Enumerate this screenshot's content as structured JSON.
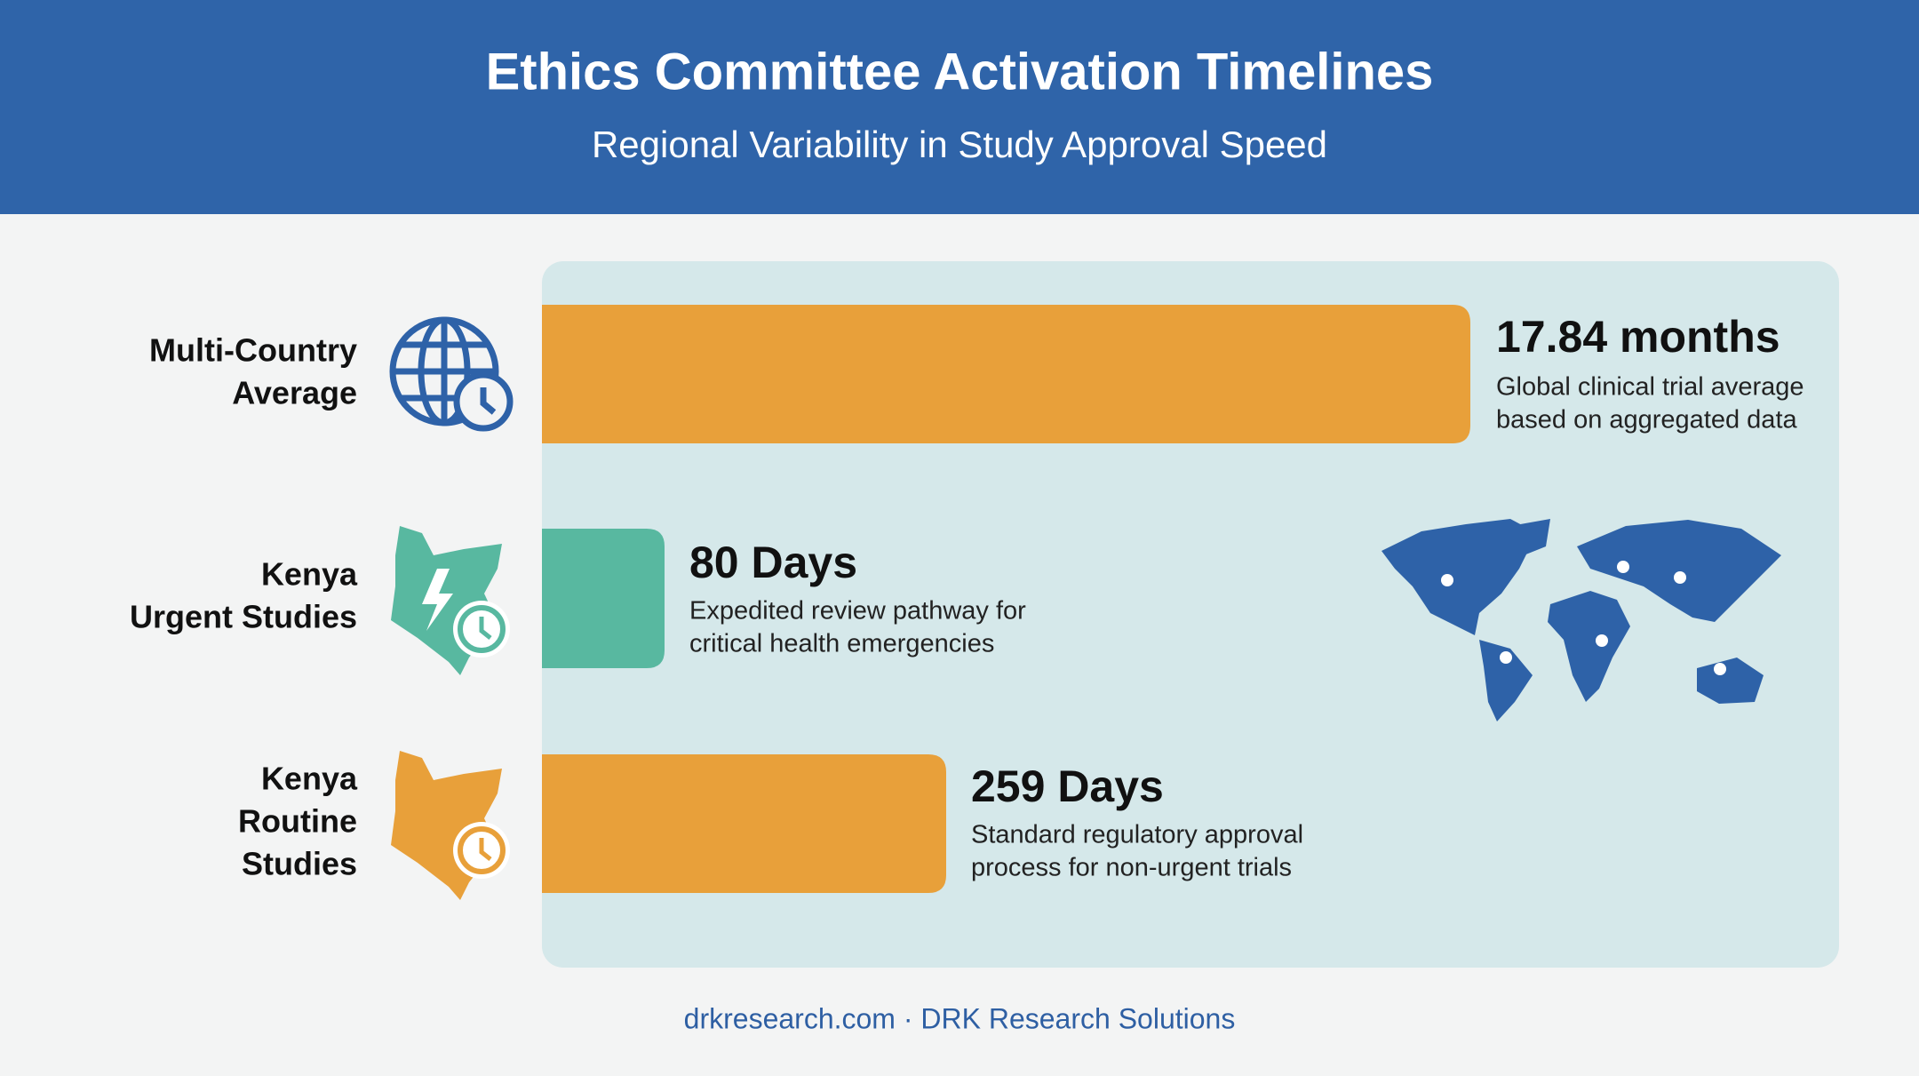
{
  "header": {
    "title": "Ethics Committee Activation Timelines",
    "subtitle": "Regional Variability in Study Approval Speed"
  },
  "rows": [
    {
      "label": [
        "Multi-Country",
        "Average"
      ],
      "value": "17.84 months",
      "description": [
        "Global clinical trial average",
        "based on aggregated data"
      ]
    },
    {
      "label": [
        "Kenya",
        "Urgent Studies"
      ],
      "value": "80 Days",
      "description": [
        "Expedited review pathway for",
        "critical health emergencies"
      ]
    },
    {
      "label": [
        "Kenya",
        "Routine",
        "Studies"
      ],
      "value": "259 Days",
      "description": [
        "Standard regulatory approval",
        "process for non-urgent trials"
      ]
    }
  ],
  "footer": "drkresearch.com · DRK Research Solutions"
}
